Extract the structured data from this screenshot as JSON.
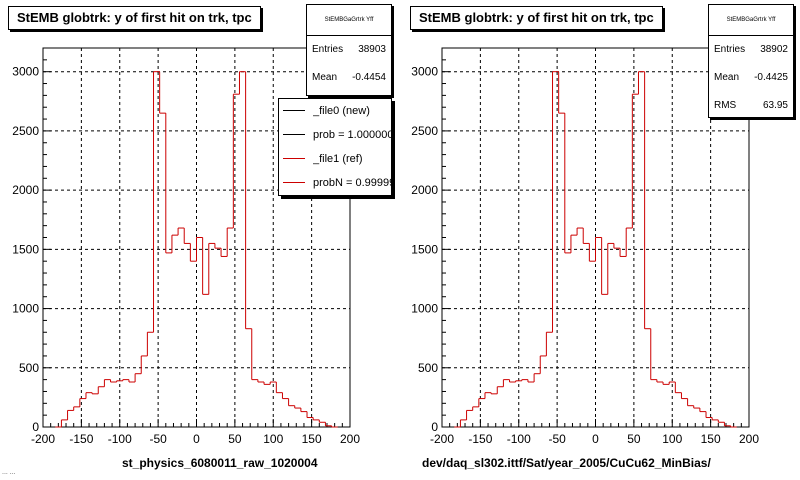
{
  "chart_data": [
    {
      "type": "histogram",
      "title": "StEMB globtrk: y of first hit on trk, tpc",
      "xlabel": "st_physics_6080011_raw_1020004",
      "ylabel": "",
      "xlim": [
        -200,
        200
      ],
      "ylim": [
        0,
        3200
      ],
      "x_ticks": [
        -200,
        -150,
        -100,
        -50,
        0,
        50,
        100,
        150,
        200
      ],
      "y_ticks": [
        0,
        500,
        1000,
        1500,
        2000,
        2500,
        3000
      ],
      "grid": true,
      "bin_width": 8,
      "series": [
        {
          "color": "#cc0000",
          "bins": [
            {
              "x": -184,
              "y": 0
            },
            {
              "x": -176,
              "y": 60
            },
            {
              "x": -168,
              "y": 140
            },
            {
              "x": -160,
              "y": 170
            },
            {
              "x": -152,
              "y": 240
            },
            {
              "x": -144,
              "y": 290
            },
            {
              "x": -136,
              "y": 280
            },
            {
              "x": -128,
              "y": 340
            },
            {
              "x": -120,
              "y": 400
            },
            {
              "x": -112,
              "y": 380
            },
            {
              "x": -104,
              "y": 390
            },
            {
              "x": -96,
              "y": 400
            },
            {
              "x": -88,
              "y": 380
            },
            {
              "x": -80,
              "y": 450
            },
            {
              "x": -72,
              "y": 600
            },
            {
              "x": -64,
              "y": 800
            },
            {
              "x": -56,
              "y": 3000
            },
            {
              "x": -48,
              "y": 2650
            },
            {
              "x": -40,
              "y": 1470
            },
            {
              "x": -32,
              "y": 1620
            },
            {
              "x": -24,
              "y": 1680
            },
            {
              "x": -16,
              "y": 1550
            },
            {
              "x": -8,
              "y": 1400
            },
            {
              "x": 0,
              "y": 1600
            },
            {
              "x": 8,
              "y": 1120
            },
            {
              "x": 16,
              "y": 1550
            },
            {
              "x": 24,
              "y": 1510
            },
            {
              "x": 32,
              "y": 1440
            },
            {
              "x": 40,
              "y": 1680
            },
            {
              "x": 48,
              "y": 2810
            },
            {
              "x": 56,
              "y": 3000
            },
            {
              "x": 64,
              "y": 830
            },
            {
              "x": 72,
              "y": 400
            },
            {
              "x": 80,
              "y": 380
            },
            {
              "x": 88,
              "y": 360
            },
            {
              "x": 96,
              "y": 380
            },
            {
              "x": 104,
              "y": 290
            },
            {
              "x": 112,
              "y": 240
            },
            {
              "x": 120,
              "y": 180
            },
            {
              "x": 128,
              "y": 160
            },
            {
              "x": 136,
              "y": 130
            },
            {
              "x": 144,
              "y": 80
            },
            {
              "x": 152,
              "y": 60
            },
            {
              "x": 160,
              "y": 40
            },
            {
              "x": 168,
              "y": 10
            },
            {
              "x": 176,
              "y": 0
            }
          ]
        }
      ],
      "stats": {
        "name": "StEMBGaGrtrk Yff",
        "entries_label": "Entries",
        "entries": "38903",
        "mean_label": "Mean",
        "mean": "-0.4454"
      },
      "legend": {
        "placement": "right",
        "entries": [
          {
            "label": "_file0 (new)",
            "color": "#000000"
          },
          {
            "label": "prob = 1.000000",
            "color": "#000000"
          },
          {
            "label": "_file1 (ref)",
            "color": "#cc0000"
          },
          {
            "label": "probN = 0.99999",
            "color": "#cc0000"
          }
        ]
      }
    },
    {
      "type": "histogram",
      "title": "StEMB globtrk: y of first hit on trk, tpc",
      "xlabel": "dev/daq_sl302.ittf/Sat/year_2005/CuCu62_MinBias/",
      "ylabel": "",
      "xlim": [
        -200,
        200
      ],
      "ylim": [
        0,
        3200
      ],
      "x_ticks": [
        -200,
        -150,
        -100,
        -50,
        0,
        50,
        100,
        150,
        200
      ],
      "y_ticks": [
        0,
        500,
        1000,
        1500,
        2000,
        2500,
        3000
      ],
      "grid": true,
      "bin_width": 8,
      "series": [
        {
          "color": "#cc0000",
          "bins": [
            {
              "x": -184,
              "y": 0
            },
            {
              "x": -176,
              "y": 60
            },
            {
              "x": -168,
              "y": 140
            },
            {
              "x": -160,
              "y": 170
            },
            {
              "x": -152,
              "y": 240
            },
            {
              "x": -144,
              "y": 290
            },
            {
              "x": -136,
              "y": 280
            },
            {
              "x": -128,
              "y": 340
            },
            {
              "x": -120,
              "y": 400
            },
            {
              "x": -112,
              "y": 380
            },
            {
              "x": -104,
              "y": 390
            },
            {
              "x": -96,
              "y": 400
            },
            {
              "x": -88,
              "y": 380
            },
            {
              "x": -80,
              "y": 450
            },
            {
              "x": -72,
              "y": 600
            },
            {
              "x": -64,
              "y": 800
            },
            {
              "x": -56,
              "y": 3000
            },
            {
              "x": -48,
              "y": 2650
            },
            {
              "x": -40,
              "y": 1470
            },
            {
              "x": -32,
              "y": 1620
            },
            {
              "x": -24,
              "y": 1680
            },
            {
              "x": -16,
              "y": 1550
            },
            {
              "x": -8,
              "y": 1400
            },
            {
              "x": 0,
              "y": 1600
            },
            {
              "x": 8,
              "y": 1120
            },
            {
              "x": 16,
              "y": 1550
            },
            {
              "x": 24,
              "y": 1510
            },
            {
              "x": 32,
              "y": 1440
            },
            {
              "x": 40,
              "y": 1680
            },
            {
              "x": 48,
              "y": 2810
            },
            {
              "x": 56,
              "y": 3000
            },
            {
              "x": 64,
              "y": 830
            },
            {
              "x": 72,
              "y": 400
            },
            {
              "x": 80,
              "y": 380
            },
            {
              "x": 88,
              "y": 360
            },
            {
              "x": 96,
              "y": 380
            },
            {
              "x": 104,
              "y": 290
            },
            {
              "x": 112,
              "y": 240
            },
            {
              "x": 120,
              "y": 180
            },
            {
              "x": 128,
              "y": 160
            },
            {
              "x": 136,
              "y": 130
            },
            {
              "x": 144,
              "y": 80
            },
            {
              "x": 152,
              "y": 60
            },
            {
              "x": 160,
              "y": 40
            },
            {
              "x": 168,
              "y": 10
            },
            {
              "x": 176,
              "y": 0
            }
          ]
        }
      ],
      "stats": {
        "name": "StEMBGaGrtrk Yff",
        "entries_label": "Entries",
        "entries": "38902",
        "mean_label": "Mean",
        "mean": "-0.4425",
        "rms_label": "RMS",
        "rms": "63.95"
      }
    }
  ],
  "footer": {
    "corner_text": "... ..."
  }
}
